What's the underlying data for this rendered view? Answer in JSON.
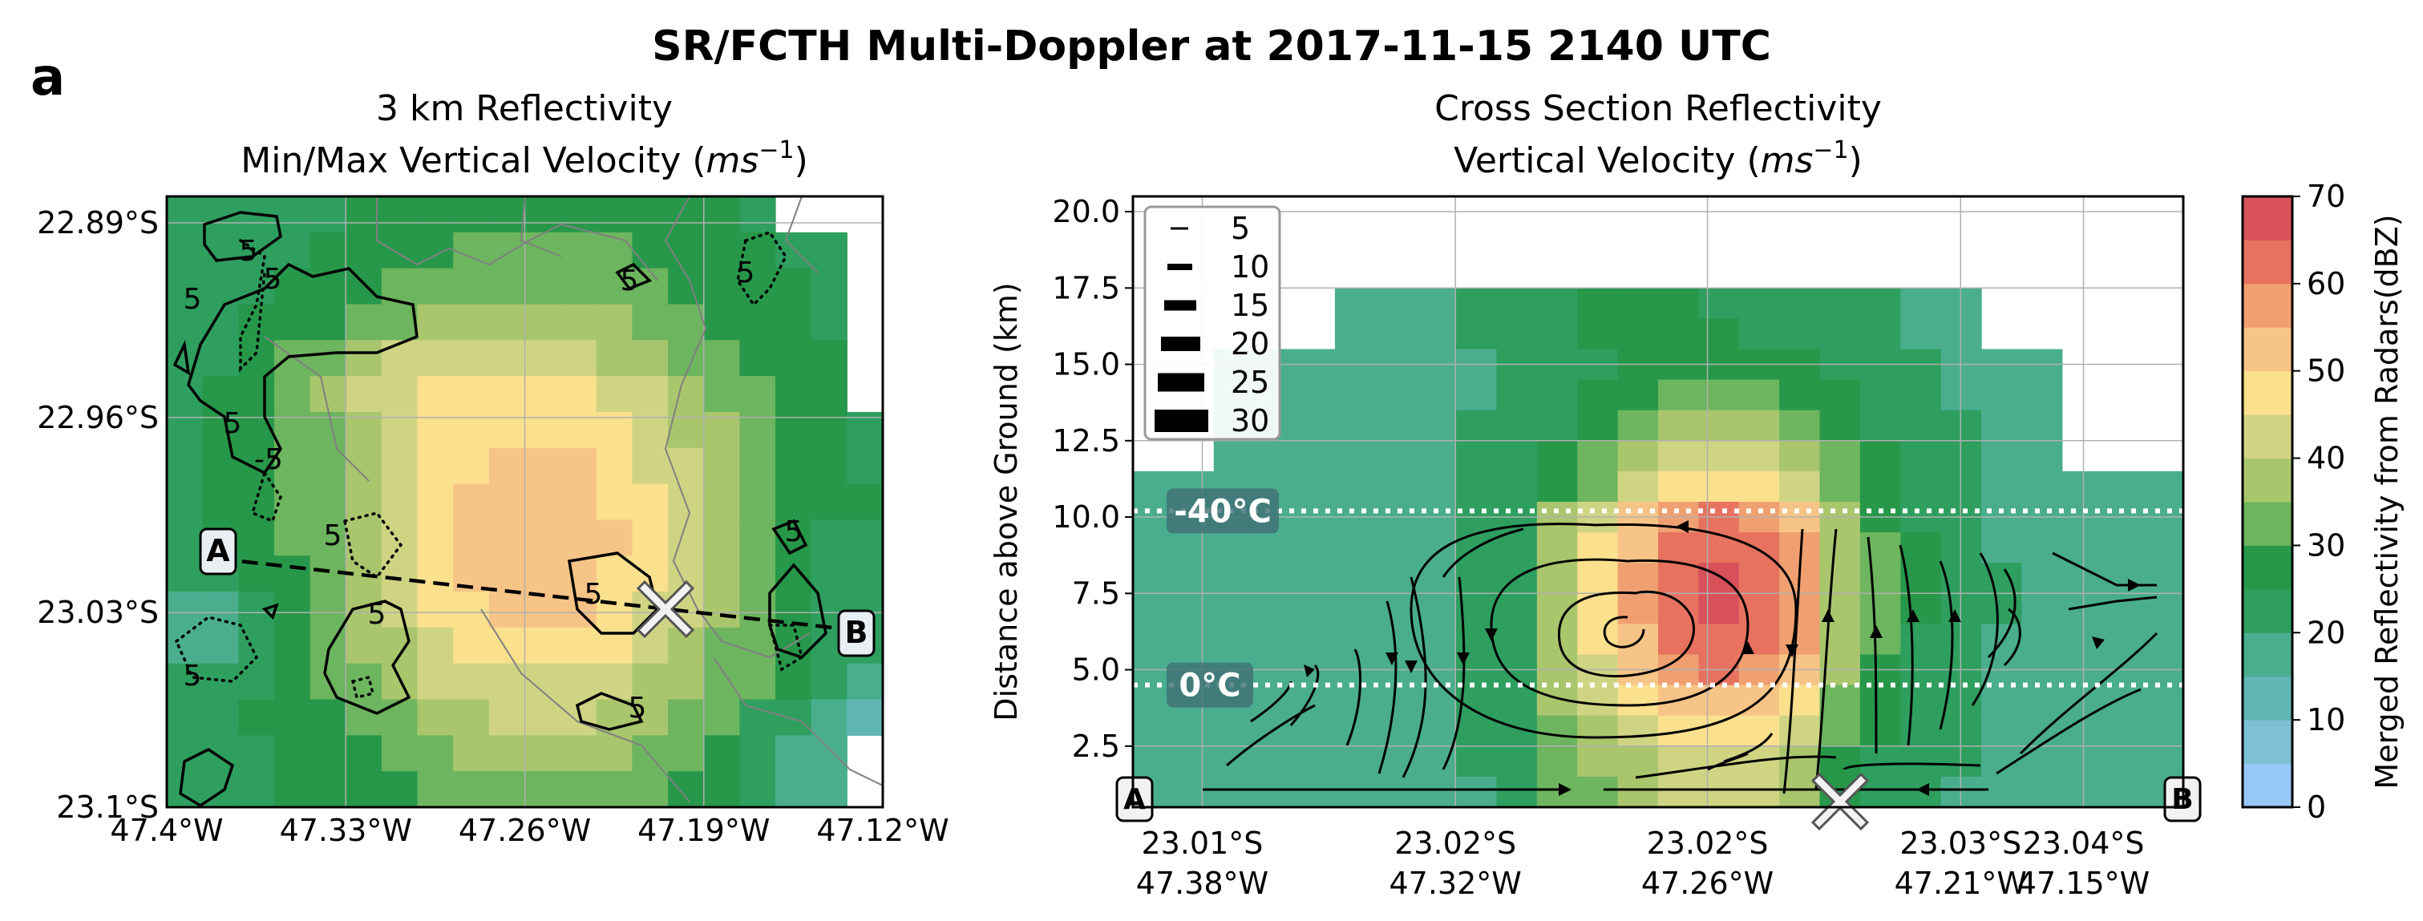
{
  "figure": {
    "panel_letter": "a",
    "suptitle": "SR/FCTH Multi-Doppler at 2017-11-15 2140 UTC"
  },
  "colors": {
    "scale": [
      "#98c8f7",
      "#7ec0d6",
      "#5fb6b5",
      "#4aae8e",
      "#2e9f5f",
      "#27984a",
      "#6db55e",
      "#a9c66d",
      "#cfd483",
      "#fbe08d",
      "#f7c487",
      "#f0a070",
      "#e7725f",
      "#d8505a",
      "#cc3b44",
      "#7a2f2e",
      "#111111"
    ],
    "contour": "#000000",
    "isotherm_box": "#3f6f76"
  },
  "chart_data": [
    {
      "type": "heatmap",
      "panel": "map",
      "title_line1": "3 km Reflectivity",
      "title_line2_prefix": "Min/Max Vertical Velocity (",
      "title_unit_base": "ms",
      "title_unit_exp": "−1",
      "title_line2_suffix": ")",
      "x_ticks": [
        "47.4°W",
        "47.33°W",
        "47.26°W",
        "47.19°W",
        "47.12°W"
      ],
      "y_ticks": [
        "22.89°S",
        "22.96°S",
        "23.03°S",
        "23.1°S"
      ],
      "xlim": [
        -47.4,
        -47.12
      ],
      "ylim": [
        -23.1,
        -22.87
      ],
      "grid": true,
      "contour_labels": [
        "5",
        "5",
        "5",
        "5",
        "5",
        "5",
        "-5",
        "5",
        "5",
        "5",
        "5",
        "5",
        "5"
      ],
      "section_endpoints": {
        "A": "A",
        "B": "B"
      },
      "marker": "X"
    },
    {
      "type": "heatmap",
      "panel": "cross_section",
      "title_line1": "Cross Section Reflectivity",
      "title_line2_prefix": "Vertical Velocity (",
      "title_unit_base": "ms",
      "title_unit_exp": "−1",
      "title_line2_suffix": ")",
      "ylabel": "Distance above Ground (km)",
      "y_ticks": [
        "2.5",
        "5.0",
        "7.5",
        "10.0",
        "12.5",
        "15.0",
        "17.5",
        "20.0"
      ],
      "ylim": [
        0.5,
        20.5
      ],
      "x_ticks_lat": [
        "23.01°S",
        "23.02°S",
        "23.02°S",
        "23.03°S",
        "23.04°S"
      ],
      "x_ticks_lon": [
        "47.38°W",
        "47.32°W",
        "47.26°W",
        "47.21°W",
        "47.15°W"
      ],
      "grid": true,
      "isotherms": [
        {
          "label": "-40°C",
          "height_km": 10.2
        },
        {
          "label": "0°C",
          "height_km": 4.5
        }
      ],
      "streamline_legend": {
        "placement": "upper-left",
        "entries": [
          "5",
          "10",
          "15",
          "20",
          "25",
          "30"
        ]
      },
      "endpoints": {
        "A": "A",
        "B": "B"
      },
      "marker": "X"
    }
  ],
  "colorbar": {
    "label": "Merged Reflectivity from Radars(dBZ)",
    "ticks": [
      "0",
      "10",
      "20",
      "30",
      "40",
      "50",
      "60",
      "70"
    ],
    "range": [
      0,
      70
    ]
  }
}
